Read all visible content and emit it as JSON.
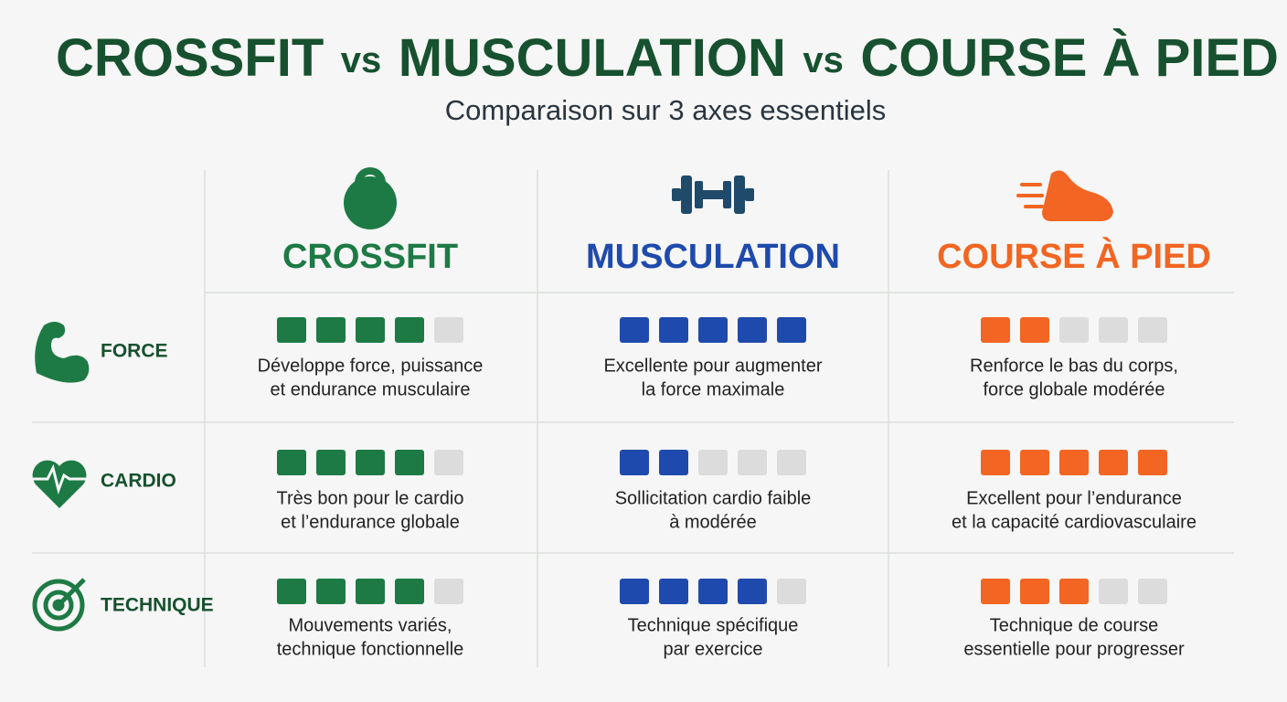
{
  "header": {
    "title": [
      "CROSSFIT",
      "vs",
      "MUSCULATION",
      "vs",
      "COURSE À PIED"
    ],
    "subtitle": "Comparaison sur 3 axes essentiels"
  },
  "scale_max": 5,
  "columns": [
    {
      "name": "CROSSFIT",
      "color": "#1e7a45"
    },
    {
      "name": "MUSCULATION",
      "color": "#1f4aad"
    },
    {
      "name": "COURSE À PIED",
      "color": "#f26522"
    }
  ],
  "rows": [
    {
      "label": "FORCE",
      "cells": [
        {
          "rating": 4,
          "text": [
            "Développe force, puissance",
            "et endurance musculaire"
          ]
        },
        {
          "rating": 5,
          "text": [
            "Excellente pour augmenter",
            "la force maximale"
          ]
        },
        {
          "rating": 2,
          "text": [
            "Renforce le bas du corps,",
            "force globale modérée"
          ]
        }
      ]
    },
    {
      "label": "CARDIO",
      "cells": [
        {
          "rating": 4,
          "text": [
            "Très bon pour le cardio",
            "et l’endurance globale"
          ]
        },
        {
          "rating": 2,
          "text": [
            "Sollicitation cardio faible",
            "à modérée"
          ]
        },
        {
          "rating": 5,
          "text": [
            "Excellent pour l’endurance",
            "et la capacité cardiovasculaire"
          ]
        }
      ]
    },
    {
      "label": "TECHNIQUE",
      "cells": [
        {
          "rating": 4,
          "text": [
            "Mouvements variés,",
            "technique fonctionnelle"
          ]
        },
        {
          "rating": 4,
          "text": [
            "Technique spécifique",
            "par exercice"
          ]
        },
        {
          "rating": 3,
          "text": [
            "Technique de course",
            "essentielle pour progresser"
          ]
        }
      ]
    }
  ]
}
